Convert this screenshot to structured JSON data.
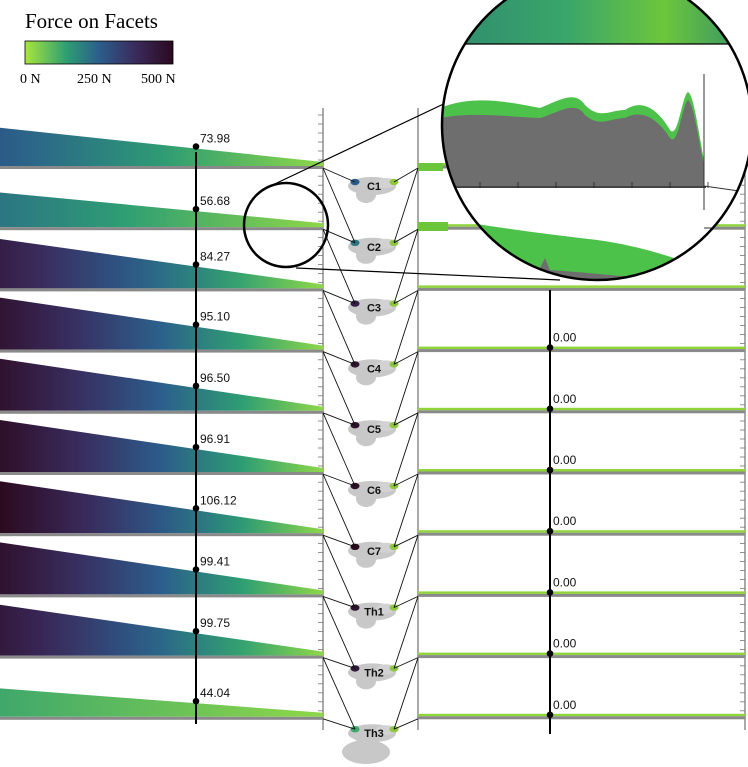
{
  "chart_data": {
    "type": "area",
    "title": "Force on Facets",
    "colorbar": {
      "ticks": [
        "0 N",
        "250 N",
        "500 N"
      ],
      "range": [
        0,
        500
      ],
      "colors": [
        "#a8e63c",
        "#2e9e73",
        "#2b5e8c",
        "#3a2a5c",
        "#2b0a1e"
      ]
    },
    "left_series_values": [
      73.98,
      56.68,
      84.27,
      95.1,
      96.5,
      96.91,
      106.12,
      99.41,
      99.75,
      44.04
    ],
    "left_labels": [
      "73.98",
      "56.68",
      "84.27",
      "95.10",
      "96.50",
      "96.91",
      "106.12",
      "99.41",
      "99.75",
      "44.04"
    ],
    "right_labels": [
      "",
      "",
      "",
      "0.00",
      "0.00",
      "0.00",
      "0.00",
      "0.00",
      "0.00",
      "0.00"
    ],
    "vertebra_labels": [
      "C1",
      "C2",
      "C3",
      "C4",
      "C5",
      "C6",
      "C7",
      "Th1",
      "Th2",
      "Th3"
    ],
    "left_max_force": [
      260,
      210,
      420,
      460,
      470,
      480,
      500,
      470,
      440,
      120
    ],
    "zoom": {
      "source": "row 2 left, right end",
      "shown": true
    }
  }
}
